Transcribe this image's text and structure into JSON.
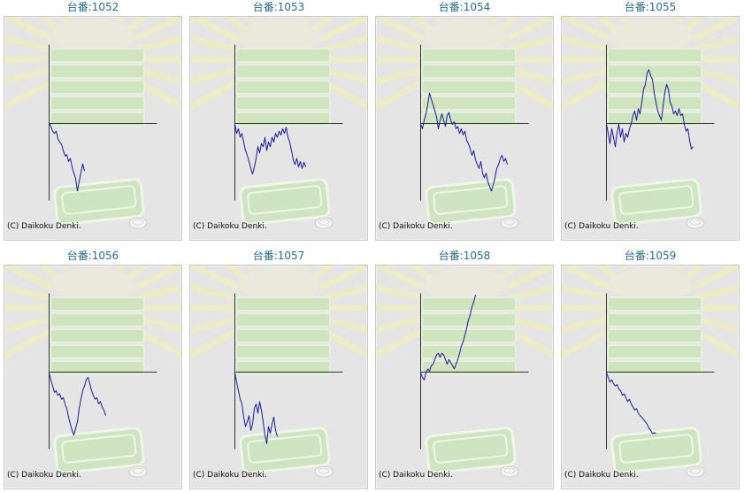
{
  "style": {
    "title_color": "#2a6e8e",
    "line_color": "#1a1a9c",
    "axis_color": "#333333",
    "panel_color": "#e5e5e5"
  },
  "chart_data": [
    {
      "type": "line",
      "title": "台番:1052",
      "credit": "(C) Daikoku Denki.",
      "xlim": [
        0,
        61
      ],
      "ylim": [
        -100,
        100
      ],
      "series": [
        {
          "values": [
            0,
            -5,
            -11,
            -14,
            -11,
            -21,
            -25,
            -28,
            -36,
            -43,
            -41,
            -50,
            -46,
            -57,
            -65,
            -72,
            -88,
            -76,
            -64,
            -53,
            -62
          ]
        }
      ]
    },
    {
      "type": "line",
      "title": "台番:1053",
      "credit": "(C) Daikoku Denki.",
      "xlim": [
        0,
        61
      ],
      "ylim": [
        -100,
        100
      ],
      "series": [
        {
          "values": [
            -2,
            -14,
            -8,
            -19,
            -14,
            -25,
            -36,
            -42,
            -50,
            -59,
            -66,
            -57,
            -46,
            -31,
            -39,
            -27,
            -31,
            -19,
            -36,
            -25,
            -31,
            -19,
            -25,
            -14,
            -19,
            -11,
            -16,
            -8,
            -14,
            -6,
            -19,
            -25,
            -36,
            -48,
            -54,
            -46,
            -57,
            -50,
            -59,
            -51,
            -57
          ]
        }
      ]
    },
    {
      "type": "line",
      "title": "台番:1054",
      "credit": "(C) Daikoku Denki.",
      "xlim": [
        0,
        61
      ],
      "ylim": [
        -100,
        100
      ],
      "series": [
        {
          "values": [
            -2,
            -8,
            3,
            11,
            23,
            38,
            30,
            23,
            15,
            7,
            -8,
            3,
            11,
            3,
            -5,
            9,
            13,
            3,
            -2,
            1,
            -8,
            -5,
            -14,
            -8,
            -16,
            -11,
            -23,
            -27,
            -34,
            -42,
            -36,
            -48,
            -54,
            -59,
            -50,
            -65,
            -71,
            -65,
            -76,
            -82,
            -88,
            -80,
            -71,
            -59,
            -54,
            -46,
            -42,
            -50,
            -46,
            -54
          ]
        }
      ]
    },
    {
      "type": "line",
      "title": "台番:1055",
      "credit": "(C) Daikoku Denki.",
      "xlim": [
        0,
        61
      ],
      "ylim": [
        -100,
        100
      ],
      "series": [
        {
          "values": [
            -2,
            -14,
            -27,
            -8,
            -19,
            -31,
            -14,
            -2,
            -19,
            -8,
            -25,
            -14,
            -19,
            -8,
            -2,
            9,
            15,
            3,
            18,
            11,
            26,
            43,
            49,
            64,
            68,
            60,
            55,
            38,
            26,
            15,
            9,
            3,
            21,
            38,
            49,
            43,
            26,
            21,
            11,
            15,
            9,
            18,
            9,
            11,
            -2,
            -11,
            -8,
            -23,
            -34,
            -31
          ]
        }
      ]
    },
    {
      "type": "line",
      "title": "台番:1056",
      "credit": "(C) Daikoku Denki.",
      "xlim": [
        0,
        61
      ],
      "ylim": [
        -100,
        100
      ],
      "series": [
        {
          "values": [
            -2,
            -11,
            -19,
            -27,
            -25,
            -31,
            -29,
            -36,
            -34,
            -42,
            -48,
            -59,
            -68,
            -76,
            -82,
            -73,
            -65,
            -48,
            -36,
            -25,
            -19,
            -11,
            -8,
            -16,
            -25,
            -31,
            -36,
            -34,
            -42,
            -39,
            -46,
            -50,
            -57
          ]
        }
      ]
    },
    {
      "type": "line",
      "title": "台番:1057",
      "credit": "(C) Daikoku Denki.",
      "xlim": [
        0,
        61
      ],
      "ylim": [
        -100,
        100
      ],
      "series": [
        {
          "values": [
            -2,
            -14,
            -25,
            -36,
            -42,
            -59,
            -71,
            -65,
            -57,
            -76,
            -68,
            -48,
            -42,
            -54,
            -39,
            -50,
            -65,
            -82,
            -93,
            -71,
            -80,
            -68,
            -59,
            -76,
            -84
          ]
        }
      ]
    },
    {
      "type": "line",
      "title": "台番:1058",
      "credit": "(C) Daikoku Denki.",
      "xlim": [
        0,
        61
      ],
      "ylim": [
        -100,
        100
      ],
      "series": [
        {
          "values": [
            -2,
            -8,
            -11,
            -2,
            3,
            0,
            7,
            9,
            15,
            21,
            23,
            18,
            23,
            21,
            15,
            9,
            15,
            11,
            7,
            3,
            9,
            15,
            23,
            32,
            38,
            46,
            55,
            66,
            72,
            83,
            89,
            98
          ]
        }
      ]
    },
    {
      "type": "line",
      "title": "台番:1059",
      "credit": "(C) Daikoku Denki.",
      "xlim": [
        0,
        61
      ],
      "ylim": [
        -100,
        100
      ],
      "series": [
        {
          "values": [
            -2,
            -8,
            -14,
            -11,
            -16,
            -19,
            -17,
            -23,
            -25,
            -31,
            -29,
            -34,
            -39,
            -36,
            -42,
            -46,
            -50,
            -48,
            -54,
            -57,
            -59,
            -62,
            -65,
            -68,
            -73,
            -76,
            -80,
            -79,
            -80
          ]
        }
      ]
    }
  ]
}
